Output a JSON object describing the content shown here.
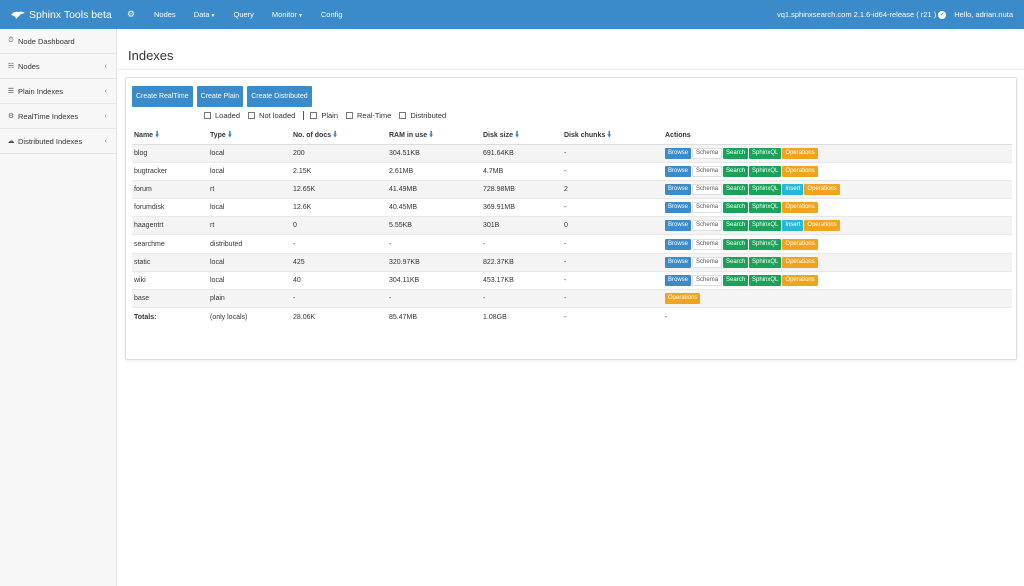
{
  "navbar": {
    "brand": "Sphinx Tools beta",
    "items": [
      {
        "label": "Nodes",
        "dropdown": false
      },
      {
        "label": "Data",
        "dropdown": true
      },
      {
        "label": "Query",
        "dropdown": false
      },
      {
        "label": "Monitor",
        "dropdown": true
      },
      {
        "label": "Config",
        "dropdown": false
      }
    ],
    "server": "vq1.sphinxsearch.com 2.1.6-id64-release ( r21 )",
    "user": "Hello, adrian.nuta",
    "bg_color": "#3b8ac9"
  },
  "sidebar": {
    "items": [
      {
        "label": "Node Dashboard",
        "icon": "dashboard-icon",
        "chevron": false
      },
      {
        "label": "Nodes",
        "icon": "sitemap-icon",
        "chevron": true
      },
      {
        "label": "Plain Indexes",
        "icon": "list-icon",
        "chevron": true
      },
      {
        "label": "RealTime Indexes",
        "icon": "gears-icon",
        "chevron": true
      },
      {
        "label": "Distributed Indexes",
        "icon": "cloud-icon",
        "chevron": true
      }
    ]
  },
  "main": {
    "title": "Indexes",
    "create_buttons": [
      "Create RealTime",
      "Create Plain",
      "Create Distributed"
    ],
    "filters_a": [
      "Loaded",
      "Not loaded"
    ],
    "filters_b": [
      "Plain",
      "Real-Time",
      "Distributed"
    ],
    "columns": [
      "Name",
      "Type",
      "No. of docs",
      "RAM in use",
      "Disk size",
      "Disk chunks",
      "Actions"
    ],
    "rows": [
      {
        "name": "blog",
        "type": "local",
        "docs": "200",
        "ram": "304.51KB",
        "disk": "691.64KB",
        "chunks": "-",
        "actions": [
          "Browse",
          "Schema",
          "Search",
          "SphinxQL",
          "Operations"
        ]
      },
      {
        "name": "bugtracker",
        "type": "local",
        "docs": "2.15K",
        "ram": "2.61MB",
        "disk": "4.7MB",
        "chunks": "-",
        "actions": [
          "Browse",
          "Schema",
          "Search",
          "SphinxQL",
          "Operations"
        ]
      },
      {
        "name": "forum",
        "type": "rt",
        "docs": "12.65K",
        "ram": "41.49MB",
        "disk": "728.98MB",
        "chunks": "2",
        "actions": [
          "Browse",
          "Schema",
          "Search",
          "SphinxQL",
          "Insert",
          "Operations"
        ]
      },
      {
        "name": "forumdisk",
        "type": "local",
        "docs": "12.6K",
        "ram": "40.45MB",
        "disk": "369.91MB",
        "chunks": "-",
        "actions": [
          "Browse",
          "Schema",
          "Search",
          "SphinxQL",
          "Operations"
        ]
      },
      {
        "name": "haagentrt",
        "type": "rt",
        "docs": "0",
        "ram": "5.55KB",
        "disk": "301B",
        "chunks": "0",
        "actions": [
          "Browse",
          "Schema",
          "Search",
          "SphinxQL",
          "Insert",
          "Operations"
        ]
      },
      {
        "name": "searchme",
        "type": "distributed",
        "docs": "-",
        "ram": "-",
        "disk": "-",
        "chunks": "-",
        "actions": [
          "Browse",
          "Schema",
          "Search",
          "SphinxQL",
          "Operations"
        ]
      },
      {
        "name": "static",
        "type": "local",
        "docs": "425",
        "ram": "320.97KB",
        "disk": "822.37KB",
        "chunks": "-",
        "actions": [
          "Browse",
          "Schema",
          "Search",
          "SphinxQL",
          "Operations"
        ]
      },
      {
        "name": "wiki",
        "type": "local",
        "docs": "40",
        "ram": "304.11KB",
        "disk": "453.17KB",
        "chunks": "-",
        "actions": [
          "Browse",
          "Schema",
          "Search",
          "SphinxQL",
          "Operations"
        ]
      },
      {
        "name": "base",
        "type": "plain",
        "docs": "-",
        "ram": "-",
        "disk": "-",
        "chunks": "-",
        "actions": [
          "Operations"
        ]
      }
    ],
    "totals": {
      "label": "Totals:",
      "type": "(only locals)",
      "docs": "28.06K",
      "ram": "85.47MB",
      "disk": "1.08GB",
      "chunks": "-",
      "actions": "-"
    }
  },
  "colors": {
    "primary": "#3b8ac9",
    "success": "#1ba15a",
    "info": "#25b8d8",
    "warning": "#f0a31c"
  }
}
